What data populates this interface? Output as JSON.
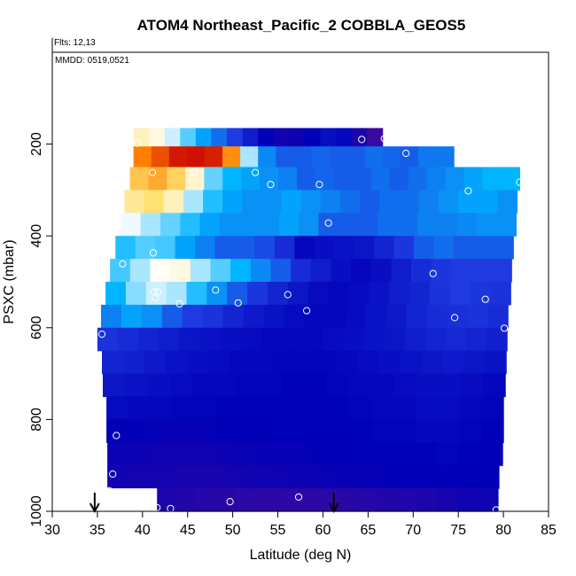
{
  "chart_data": {
    "type": "heatmap",
    "title": "ATOM4 Northeast_Pacific_2 COBBLA_GEOS5",
    "annotations": {
      "flights": "Flts: 12,13",
      "dates": "MMDD: 0519,0521"
    },
    "xlabel": "Latitude (deg N)",
    "ylabel": "PSXC (mbar)",
    "xlim": [
      30,
      85
    ],
    "ylim": [
      1000,
      0
    ],
    "y_reversed": true,
    "x_ticks": [
      30,
      35,
      40,
      45,
      50,
      55,
      60,
      65,
      70,
      75,
      80,
      85
    ],
    "y_ticks": [
      200,
      400,
      600,
      800,
      1000
    ],
    "grid": false,
    "legend": "none",
    "colormap": [
      "#3a0aa0",
      "#0000b8",
      "#1e3ae0",
      "#00b4ff",
      "#ffffff",
      "#ffe070",
      "#ff8000",
      "#c80000"
    ],
    "layers": [
      {
        "p_top": 165,
        "p_bot": 205,
        "lat_min": 39.0,
        "lat_max": 66.6,
        "values": [
          0.62,
          0.58,
          0.52,
          0.45,
          0.38,
          0.32,
          0.26,
          0.18,
          0.1,
          0.04,
          0.06,
          0.1,
          0.14,
          0.12,
          0.0,
          -0.1
        ]
      },
      {
        "p_top": 205,
        "p_bot": 250,
        "lat_min": 39.0,
        "lat_max": 74.5,
        "values": [
          0.84,
          0.9,
          0.97,
          0.98,
          0.96,
          0.82,
          0.5,
          0.35,
          0.3,
          0.3,
          0.31,
          0.3,
          0.3,
          0.32,
          0.31,
          0.3,
          0.33,
          0.33
        ]
      },
      {
        "p_top": 250,
        "p_bot": 300,
        "lat_min": 38.6,
        "lat_max": 81.8,
        "values": [
          0.74,
          0.78,
          0.72,
          0.6,
          0.46,
          0.4,
          0.38,
          0.36,
          0.34,
          0.3,
          0.31,
          0.3,
          0.3,
          0.32,
          0.3,
          0.32,
          0.34,
          0.36,
          0.38,
          0.4,
          0.4
        ]
      },
      {
        "p_top": 300,
        "p_bot": 350,
        "lat_min": 38.0,
        "lat_max": 81.5,
        "values": [
          0.66,
          0.7,
          0.62,
          0.5,
          0.42,
          0.38,
          0.36,
          0.36,
          0.38,
          0.36,
          0.34,
          0.32,
          0.3,
          0.32,
          0.32,
          0.34,
          0.36,
          0.38,
          0.38,
          0.36
        ]
      },
      {
        "p_top": 350,
        "p_bot": 400,
        "lat_min": 37.6,
        "lat_max": 81.4,
        "values": [
          0.54,
          0.5,
          0.46,
          0.42,
          0.38,
          0.36,
          0.36,
          0.36,
          0.38,
          0.36,
          0.3,
          0.3,
          0.3,
          0.32,
          0.32,
          0.34,
          0.34,
          0.35,
          0.36,
          0.36
        ]
      },
      {
        "p_top": 400,
        "p_bot": 450,
        "lat_min": 37.0,
        "lat_max": 81.1,
        "values": [
          0.42,
          0.45,
          0.44,
          0.38,
          0.34,
          0.3,
          0.3,
          0.28,
          0.22,
          0.12,
          0.14,
          0.15,
          0.16,
          0.2,
          0.25,
          0.3,
          0.32,
          0.3,
          0.3,
          0.3
        ]
      },
      {
        "p_top": 450,
        "p_bot": 500,
        "lat_min": 36.4,
        "lat_max": 80.9,
        "values": [
          0.44,
          0.5,
          0.56,
          0.58,
          0.5,
          0.45,
          0.4,
          0.35,
          0.3,
          0.22,
          0.18,
          0.14,
          0.12,
          0.14,
          0.18,
          0.22,
          0.25,
          0.26,
          0.26,
          0.26
        ]
      },
      {
        "p_top": 500,
        "p_bot": 550,
        "lat_min": 35.9,
        "lat_max": 80.8,
        "values": [
          0.4,
          0.48,
          0.52,
          0.5,
          0.42,
          0.36,
          0.3,
          0.25,
          0.2,
          0.16,
          0.13,
          0.12,
          0.13,
          0.15,
          0.18,
          0.2,
          0.24,
          0.26,
          0.25,
          0.24
        ]
      },
      {
        "p_top": 550,
        "p_bot": 600,
        "lat_min": 35.4,
        "lat_max": 80.5,
        "values": [
          0.34,
          0.38,
          0.36,
          0.3,
          0.26,
          0.24,
          0.2,
          0.17,
          0.15,
          0.13,
          0.12,
          0.12,
          0.13,
          0.15,
          0.17,
          0.2,
          0.22,
          0.23,
          0.24,
          0.22
        ]
      },
      {
        "p_top": 600,
        "p_bot": 650,
        "lat_min": 35.0,
        "lat_max": 80.4,
        "values": [
          0.24,
          0.22,
          0.2,
          0.18,
          0.16,
          0.15,
          0.14,
          0.13,
          0.12,
          0.12,
          0.12,
          0.13,
          0.14,
          0.15,
          0.16,
          0.18,
          0.2,
          0.21,
          0.2,
          0.19
        ]
      },
      {
        "p_top": 650,
        "p_bot": 700,
        "lat_min": 35.5,
        "lat_max": 80.3,
        "values": [
          0.2,
          0.19,
          0.17,
          0.15,
          0.14,
          0.13,
          0.12,
          0.12,
          0.11,
          0.11,
          0.11,
          0.12,
          0.13,
          0.14,
          0.15,
          0.16,
          0.17,
          0.16,
          0.15
        ]
      },
      {
        "p_top": 700,
        "p_bot": 750,
        "lat_min": 35.6,
        "lat_max": 80.2,
        "values": [
          0.16,
          0.15,
          0.14,
          0.13,
          0.12,
          0.12,
          0.11,
          0.11,
          0.1,
          0.1,
          0.11,
          0.12,
          0.12,
          0.13,
          0.14,
          0.14,
          0.13,
          0.12
        ]
      },
      {
        "p_top": 750,
        "p_bot": 800,
        "lat_min": 36.0,
        "lat_max": 80.0,
        "values": [
          0.13,
          0.12,
          0.12,
          0.11,
          0.11,
          0.1,
          0.1,
          0.1,
          0.1,
          0.1,
          0.1,
          0.11,
          0.12,
          0.12,
          0.13,
          0.13,
          0.12,
          0.11
        ]
      },
      {
        "p_top": 800,
        "p_bot": 850,
        "lat_min": 36.0,
        "lat_max": 80.0,
        "values": [
          0.09,
          0.09,
          0.08,
          0.08,
          0.08,
          0.09,
          0.09,
          0.1,
          0.1,
          0.1,
          0.1,
          0.1,
          0.11,
          0.11,
          0.12,
          0.12,
          0.11,
          0.1
        ]
      },
      {
        "p_top": 850,
        "p_bot": 900,
        "lat_min": 36.1,
        "lat_max": 79.9,
        "values": [
          0.06,
          0.06,
          0.05,
          0.05,
          0.05,
          0.06,
          0.07,
          0.08,
          0.08,
          0.09,
          0.09,
          0.1,
          0.1,
          0.1,
          0.1,
          0.11,
          0.1,
          0.09
        ]
      },
      {
        "p_top": 900,
        "p_bot": 950,
        "lat_min": 36.1,
        "lat_max": 79.5,
        "values": [
          0.04,
          0.03,
          0.03,
          0.02,
          0.02,
          0.03,
          0.04,
          0.05,
          0.06,
          0.07,
          0.08,
          0.08,
          0.09,
          0.09,
          0.09,
          0.1,
          0.09
        ]
      },
      {
        "p_top": 950,
        "p_bot": 1000,
        "lat_min": 41.6,
        "lat_max": 79.4,
        "values": [
          0.0,
          -0.02,
          -0.03,
          -0.04,
          -0.05,
          -0.06,
          -0.06,
          -0.06,
          -0.05,
          -0.04,
          -0.03,
          -0.02,
          -0.01,
          0.0,
          0.02,
          0.04,
          0.05
        ]
      }
    ],
    "missing_region": {
      "lat_min": 34.4,
      "lat_max": 41.6,
      "p_min": 950,
      "p_max": 1000
    },
    "observations": [
      {
        "lat": 39.4,
        "p": 198
      },
      {
        "lat": 41.1,
        "p": 262
      },
      {
        "lat": 45.8,
        "p": 262
      },
      {
        "lat": 52.5,
        "p": 262
      },
      {
        "lat": 54.2,
        "p": 288
      },
      {
        "lat": 59.6,
        "p": 288
      },
      {
        "lat": 64.3,
        "p": 190
      },
      {
        "lat": 66.8,
        "p": 188
      },
      {
        "lat": 69.2,
        "p": 220
      },
      {
        "lat": 76.1,
        "p": 302
      },
      {
        "lat": 81.8,
        "p": 283
      },
      {
        "lat": 60.6,
        "p": 372
      },
      {
        "lat": 37.8,
        "p": 461
      },
      {
        "lat": 41.2,
        "p": 437
      },
      {
        "lat": 72.2,
        "p": 482
      },
      {
        "lat": 41.3,
        "p": 522
      },
      {
        "lat": 41.7,
        "p": 522
      },
      {
        "lat": 41.4,
        "p": 535
      },
      {
        "lat": 44.1,
        "p": 548
      },
      {
        "lat": 48.1,
        "p": 518
      },
      {
        "lat": 50.6,
        "p": 546
      },
      {
        "lat": 56.1,
        "p": 528
      },
      {
        "lat": 58.2,
        "p": 563
      },
      {
        "lat": 78.0,
        "p": 538
      },
      {
        "lat": 74.6,
        "p": 578
      },
      {
        "lat": 80.1,
        "p": 601
      },
      {
        "lat": 35.5,
        "p": 614
      },
      {
        "lat": 37.1,
        "p": 835
      },
      {
        "lat": 36.7,
        "p": 919
      },
      {
        "lat": 36.3,
        "p": 955
      },
      {
        "lat": 41.6,
        "p": 992
      },
      {
        "lat": 43.1,
        "p": 994
      },
      {
        "lat": 49.7,
        "p": 979
      },
      {
        "lat": 57.3,
        "p": 969
      },
      {
        "lat": 79.2,
        "p": 997
      }
    ],
    "arrows": [
      {
        "lat": 34.7
      },
      {
        "lat": 61.2
      }
    ]
  }
}
